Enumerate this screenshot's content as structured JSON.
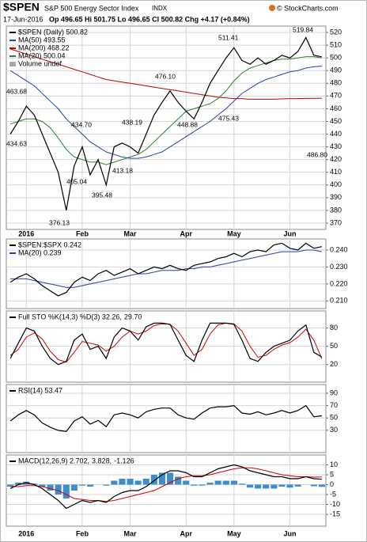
{
  "header": {
    "symbol": "$SPEN",
    "name": "S&P 500 Energy Sector Index",
    "exchange": "INDX",
    "date": "17-Jun-2016",
    "quote": "Op 496.65 Hi 501.75 Lo 496.65 Cl 500.82 Chg +4.17 (+0.84%)",
    "credit": "© StockCharts.com"
  },
  "chart_data": [
    {
      "type": "line",
      "legend_layout": "stacked",
      "legend_note": "Volume undef",
      "grid": true,
      "categories": [
        null,
        null,
        "2016",
        null,
        null,
        null,
        null,
        null,
        null,
        "Feb",
        null,
        null,
        null,
        null,
        null,
        "Mar",
        null,
        null,
        null,
        null,
        null,
        null,
        "Apr",
        null,
        null,
        null,
        null,
        null,
        "May",
        null,
        null,
        null,
        null,
        null,
        null,
        "Jun",
        null,
        null,
        null,
        null
      ],
      "ylim": [
        365,
        525
      ],
      "yticks": [
        370,
        380,
        390,
        400,
        410,
        420,
        430,
        440,
        450,
        460,
        470,
        480,
        490,
        500,
        510,
        520
      ],
      "annotations": [
        "434.63",
        "463.68",
        "376.13",
        "434.70",
        "405.04",
        "395.48",
        "438.19",
        "413.18",
        "476.10",
        "448.88",
        "511.41",
        "475.43",
        "519.84",
        "486.80"
      ],
      "series": [
        {
          "name": "$SPEN (Daily) 500.82",
          "color": "#000000",
          "values": [
            440,
            450,
            462,
            455,
            440,
            425,
            410,
            380,
            415,
            430,
            408,
            420,
            400,
            430,
            433,
            430,
            425,
            440,
            455,
            465,
            474,
            465,
            458,
            452,
            465,
            480,
            490,
            500,
            508,
            498,
            495,
            500,
            495,
            498,
            502,
            500,
            505,
            516,
            502,
            500.82
          ]
        },
        {
          "name": "MA(50) 493.55",
          "color": "#2b3fa8",
          "values": [
            490,
            486,
            482,
            478,
            472,
            466,
            460,
            452,
            446,
            440,
            434,
            430,
            426,
            424,
            422,
            421,
            421,
            422,
            424,
            426,
            430,
            434,
            438,
            442,
            446,
            450,
            455,
            460,
            466,
            472,
            476,
            480,
            483,
            485,
            487,
            489,
            490,
            492,
            493,
            493.55
          ]
        },
        {
          "name": "MA(200) 468.22",
          "color": "#c00000",
          "values": [
            507,
            505,
            503,
            501,
            499,
            497,
            495,
            493,
            491,
            489,
            487,
            485,
            483,
            482,
            481,
            480,
            479,
            478,
            477,
            476,
            475,
            474,
            473,
            472,
            471,
            470,
            469,
            468.5,
            468,
            468,
            467.5,
            467.5,
            467.5,
            467.5,
            467.8,
            468,
            468,
            468.1,
            468.2,
            468.22
          ]
        },
        {
          "name": "MA(20) 500.04",
          "color": "#2e7d32",
          "values": [
            448,
            450,
            452,
            452,
            450,
            445,
            437,
            428,
            422,
            420,
            418,
            418,
            416,
            418,
            420,
            422,
            424,
            428,
            434,
            440,
            446,
            452,
            458,
            460,
            462,
            464,
            468,
            474,
            482,
            488,
            492,
            494,
            496,
            498,
            499,
            499,
            500,
            501,
            501,
            500.04
          ]
        }
      ]
    },
    {
      "type": "line",
      "legend_layout": "stacked",
      "grid": true,
      "categories": [
        null,
        null,
        "2016",
        null,
        null,
        null,
        null,
        null,
        null,
        "Feb",
        null,
        null,
        null,
        null,
        null,
        "Mar",
        null,
        null,
        null,
        null,
        null,
        null,
        "Apr",
        null,
        null,
        null,
        null,
        null,
        "May",
        null,
        null,
        null,
        null,
        null,
        null,
        "Jun",
        null,
        null,
        null,
        null
      ],
      "ylim": [
        0.2055,
        0.2465
      ],
      "yticks": [
        {
          "value": 0.21,
          "label": "0.210"
        },
        {
          "value": 0.22,
          "label": "0.220"
        },
        {
          "value": 0.23,
          "label": "0.230"
        },
        {
          "value": 0.24,
          "label": "0.240"
        }
      ],
      "series": [
        {
          "name": "$SPEN:$SPX 0.242",
          "color": "#000000",
          "values": [
            0.221,
            0.224,
            0.226,
            0.223,
            0.219,
            0.216,
            0.213,
            0.215,
            0.221,
            0.224,
            0.222,
            0.226,
            0.228,
            0.225,
            0.227,
            0.229,
            0.226,
            0.228,
            0.23,
            0.229,
            0.231,
            0.229,
            0.228,
            0.231,
            0.232,
            0.233,
            0.235,
            0.236,
            0.238,
            0.236,
            0.239,
            0.24,
            0.239,
            0.243,
            0.244,
            0.241,
            0.24,
            0.244,
            0.241,
            0.242
          ]
        },
        {
          "name": "MA(20) 0.239",
          "color": "#2b3fa8",
          "values": [
            0.223,
            0.223,
            0.223,
            0.222,
            0.221,
            0.22,
            0.219,
            0.218,
            0.218,
            0.219,
            0.22,
            0.221,
            0.222,
            0.223,
            0.224,
            0.225,
            0.226,
            0.226,
            0.227,
            0.228,
            0.228,
            0.228,
            0.229,
            0.229,
            0.23,
            0.23,
            0.231,
            0.232,
            0.233,
            0.234,
            0.235,
            0.236,
            0.237,
            0.238,
            0.239,
            0.239,
            0.239,
            0.24,
            0.24,
            0.239
          ]
        }
      ]
    },
    {
      "type": "line",
      "legend_layout": "inline",
      "grid": true,
      "categories": [
        null,
        null,
        "2016",
        null,
        null,
        null,
        null,
        null,
        null,
        "Feb",
        null,
        null,
        null,
        null,
        null,
        "Mar",
        null,
        null,
        null,
        null,
        null,
        null,
        "Apr",
        null,
        null,
        null,
        null,
        null,
        "May",
        null,
        null,
        null,
        null,
        null,
        null,
        "Jun",
        null,
        null,
        null,
        null
      ],
      "ylim": [
        -9,
        108
      ],
      "yticks": [
        20,
        50,
        80
      ],
      "series": [
        {
          "name": "Full STO %K(14,3) %D(3) 32.26,",
          "color": "#000000",
          "values": [
            30,
            55,
            80,
            75,
            50,
            30,
            20,
            25,
            60,
            70,
            45,
            50,
            30,
            65,
            80,
            75,
            60,
            82,
            88,
            88,
            86,
            60,
            35,
            25,
            60,
            88,
            88,
            88,
            86,
            60,
            30,
            25,
            40,
            50,
            55,
            60,
            75,
            85,
            40,
            32.26
          ]
        },
        {
          "name": "29.70",
          "color": "#d00000",
          "values": [
            35,
            45,
            65,
            72,
            62,
            42,
            28,
            24,
            40,
            58,
            55,
            52,
            42,
            50,
            65,
            75,
            70,
            75,
            84,
            87,
            86,
            75,
            55,
            35,
            45,
            70,
            85,
            88,
            87,
            75,
            50,
            32,
            35,
            45,
            52,
            56,
            65,
            78,
            60,
            29.7
          ]
        }
      ]
    },
    {
      "type": "line",
      "legend_layout": "stacked",
      "grid": true,
      "categories": [
        null,
        null,
        "2016",
        null,
        null,
        null,
        null,
        null,
        null,
        "Feb",
        null,
        null,
        null,
        null,
        null,
        "Mar",
        null,
        null,
        null,
        null,
        null,
        null,
        "Apr",
        null,
        null,
        null,
        null,
        null,
        "May",
        null,
        null,
        null,
        null,
        null,
        null,
        "Jun",
        null,
        null,
        null,
        null
      ],
      "ylim": [
        -6,
        104
      ],
      "yticks": [
        30,
        50,
        70,
        90
      ],
      "series": [
        {
          "name": "RSI(14) 53.47",
          "color": "#000000",
          "values": [
            45,
            55,
            62,
            55,
            42,
            35,
            30,
            28,
            45,
            52,
            40,
            46,
            36,
            55,
            58,
            55,
            50,
            60,
            64,
            66,
            66,
            55,
            50,
            48,
            58,
            66,
            68,
            68,
            70,
            58,
            56,
            60,
            55,
            58,
            62,
            58,
            62,
            70,
            52,
            53.47
          ]
        }
      ]
    },
    {
      "type": "line",
      "legend_layout": "inline",
      "grid": true,
      "categories": [
        null,
        null,
        "2016",
        null,
        null,
        null,
        null,
        null,
        null,
        "Feb",
        null,
        null,
        null,
        null,
        null,
        "Mar",
        null,
        null,
        null,
        null,
        null,
        null,
        "Apr",
        null,
        null,
        null,
        null,
        null,
        "May",
        null,
        null,
        null,
        null,
        null,
        null,
        "Jun",
        null,
        null,
        null,
        null
      ],
      "ylim": [
        -21,
        15
      ],
      "yticks": [
        -15,
        -10,
        -5,
        0,
        5,
        10
      ],
      "series": [
        {
          "name": "MACD(12,26,9) 2.702,",
          "color": "#000000",
          "values": [
            -2,
            0,
            1,
            0,
            -2,
            -5,
            -8,
            -12,
            -10,
            -8,
            -9,
            -8,
            -9,
            -6,
            -4,
            -3,
            -3,
            -1,
            2,
            5,
            7,
            7,
            6,
            4,
            4,
            6,
            8,
            9,
            10,
            9,
            7,
            6,
            5,
            4,
            4,
            3,
            3,
            4,
            3,
            2.702
          ]
        },
        {
          "name": "3.828,",
          "color": "#d00000",
          "values": [
            -1,
            -1,
            -0.5,
            -0.5,
            -1,
            -2,
            -3,
            -5,
            -7,
            -7.5,
            -8,
            -8,
            -8.5,
            -8,
            -7,
            -6,
            -5,
            -4,
            -3,
            -1,
            1,
            3,
            4,
            4.5,
            4.5,
            5,
            6,
            7,
            8,
            8.5,
            8.5,
            8,
            7,
            6,
            5,
            4.5,
            4,
            4,
            3.8,
            3.828
          ]
        },
        {
          "name": "-1.126",
          "color": "#3d8fcc",
          "type": "bar",
          "values": [
            -1,
            1,
            1.5,
            0.5,
            -1,
            -3,
            -5,
            -7,
            -3,
            -0.5,
            -1,
            0,
            -0.5,
            2,
            3,
            3,
            2,
            3,
            5,
            6,
            6,
            4,
            2,
            -0.5,
            -0.5,
            1,
            2,
            2,
            2,
            0.5,
            -1.5,
            -2,
            -2,
            -2,
            -1,
            -1.5,
            -1,
            0,
            -0.8,
            -1.126
          ]
        }
      ]
    }
  ]
}
